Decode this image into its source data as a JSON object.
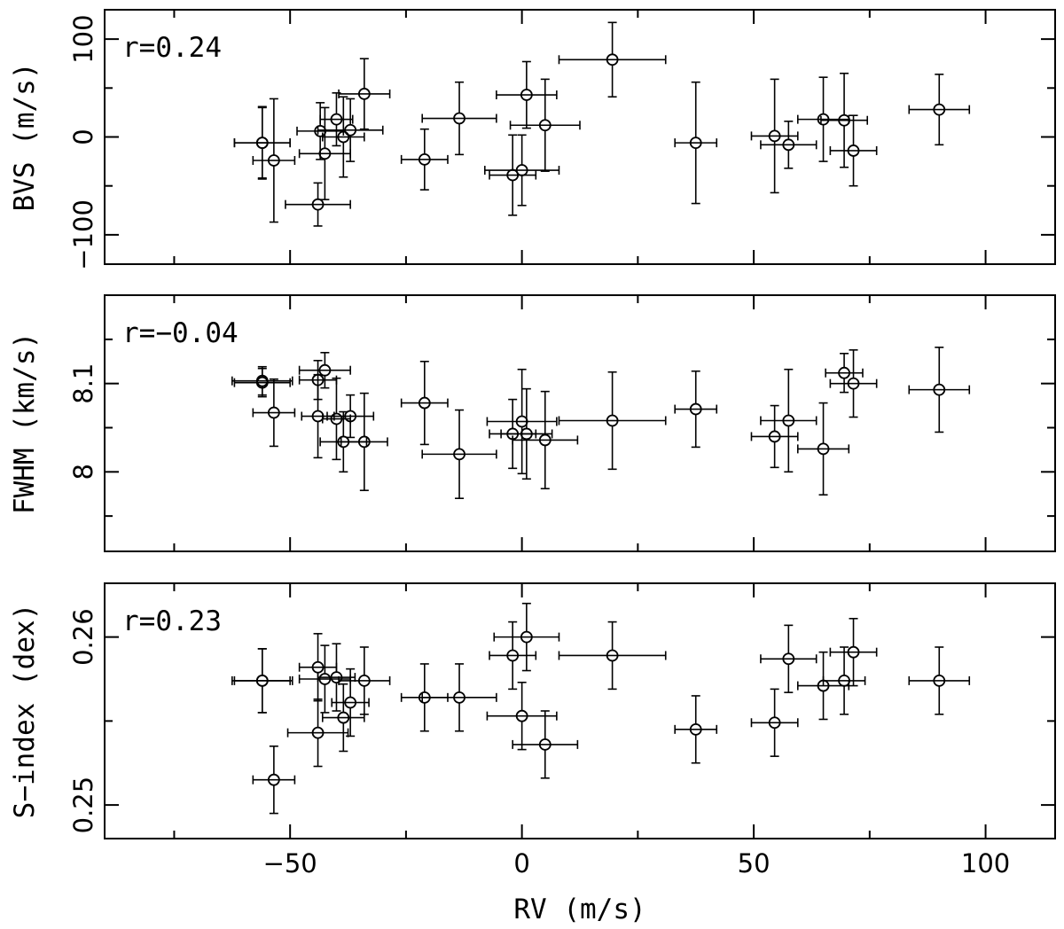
{
  "chart_data": [
    {
      "type": "scatter",
      "panel": "top",
      "annotation": "r=0.24",
      "ylabel": "BVS (m/s)",
      "xlabel": "",
      "xlim": [
        -90,
        115
      ],
      "ylim": [
        -130,
        130
      ],
      "xticks": [
        -50,
        0,
        50,
        100
      ],
      "xtick_labels": [],
      "xminor": [
        -75,
        -25,
        25,
        75
      ],
      "yticks": [
        -100,
        0,
        100
      ],
      "ytick_labels": [
        "−100",
        "0",
        "100"
      ],
      "yminor": [
        -50,
        50
      ],
      "points": [
        {
          "x": -56,
          "y": -6,
          "xerr": 6,
          "yerr": 36
        },
        {
          "x": -56,
          "y": -6,
          "xerr": 6,
          "yerr": 37
        },
        {
          "x": -53.5,
          "y": -24,
          "xerr": 4.5,
          "yerr": 63
        },
        {
          "x": -44,
          "y": -69,
          "xerr": 7,
          "yerr": 22
        },
        {
          "x": -43.5,
          "y": 6,
          "xerr": 5,
          "yerr": 29
        },
        {
          "x": -42.5,
          "y": -17,
          "xerr": 5.5,
          "yerr": 47
        },
        {
          "x": -40,
          "y": 18,
          "xerr": 3.5,
          "yerr": 27
        },
        {
          "x": -38.5,
          "y": 0,
          "xerr": 4.5,
          "yerr": 41
        },
        {
          "x": -37,
          "y": 7,
          "xerr": 7,
          "yerr": 32
        },
        {
          "x": -34,
          "y": 44,
          "xerr": 5.5,
          "yerr": 36
        },
        {
          "x": -21,
          "y": -23,
          "xerr": 5,
          "yerr": 31
        },
        {
          "x": -13.5,
          "y": 19,
          "xerr": 8,
          "yerr": 37
        },
        {
          "x": -2,
          "y": -39,
          "xerr": 5,
          "yerr": 41
        },
        {
          "x": 0,
          "y": -34,
          "xerr": 8,
          "yerr": 36
        },
        {
          "x": 1,
          "y": 43,
          "xerr": 6.5,
          "yerr": 34
        },
        {
          "x": 5,
          "y": 12,
          "xerr": 7.5,
          "yerr": 47
        },
        {
          "x": 19.5,
          "y": 79,
          "xerr": 11.5,
          "yerr": 38
        },
        {
          "x": 37.5,
          "y": -6,
          "xerr": 4.5,
          "yerr": 62
        },
        {
          "x": 54.5,
          "y": 1,
          "xerr": 5,
          "yerr": 58
        },
        {
          "x": 57.5,
          "y": -8,
          "xerr": 6,
          "yerr": 24
        },
        {
          "x": 65,
          "y": 18,
          "xerr": 5.5,
          "yerr": 43
        },
        {
          "x": 69.5,
          "y": 17,
          "xerr": 5,
          "yerr": 48
        },
        {
          "x": 71.5,
          "y": -14,
          "xerr": 5,
          "yerr": 36
        },
        {
          "x": 90,
          "y": 28,
          "xerr": 6.5,
          "yerr": 36
        }
      ]
    },
    {
      "type": "scatter",
      "panel": "middle",
      "annotation": "r=−0.04",
      "ylabel": "FWHM (km/s)",
      "xlabel": "",
      "xlim": [
        -90,
        115
      ],
      "ylim": [
        7.91,
        8.2
      ],
      "xticks": [
        -50,
        0,
        50,
        100
      ],
      "xtick_labels": [],
      "xminor": [
        -75,
        -25,
        25,
        75
      ],
      "yticks": [
        8,
        8.1
      ],
      "ytick_labels": [
        "8",
        "8.1"
      ],
      "yminor": [
        7.95,
        8.05,
        8.15
      ],
      "points": [
        {
          "x": -56,
          "y": 8.101,
          "xerr": 6,
          "yerr": 0.016
        },
        {
          "x": -56,
          "y": 8.103,
          "xerr": 6.5,
          "yerr": 0.016
        },
        {
          "x": -53.5,
          "y": 8.067,
          "xerr": 4.5,
          "yerr": 0.038
        },
        {
          "x": -44,
          "y": 8.104,
          "xerr": 4,
          "yerr": 0.022
        },
        {
          "x": -44,
          "y": 8.063,
          "xerr": 3.5,
          "yerr": 0.047
        },
        {
          "x": -42.5,
          "y": 8.115,
          "xerr": 5.5,
          "yerr": 0.02
        },
        {
          "x": -40,
          "y": 8.06,
          "xerr": 3,
          "yerr": 0.046
        },
        {
          "x": -38.5,
          "y": 8.034,
          "xerr": 5,
          "yerr": 0.034
        },
        {
          "x": -37,
          "y": 8.063,
          "xerr": 5,
          "yerr": 0.024
        },
        {
          "x": -34,
          "y": 8.034,
          "xerr": 5,
          "yerr": 0.055
        },
        {
          "x": -21,
          "y": 8.078,
          "xerr": 5,
          "yerr": 0.047
        },
        {
          "x": -13.5,
          "y": 8.02,
          "xerr": 8,
          "yerr": 0.05
        },
        {
          "x": -2,
          "y": 8.043,
          "xerr": 5,
          "yerr": 0.039
        },
        {
          "x": 0,
          "y": 8.057,
          "xerr": 7.5,
          "yerr": 0.059
        },
        {
          "x": 1,
          "y": 8.043,
          "xerr": 5.5,
          "yerr": 0.051
        },
        {
          "x": 5,
          "y": 8.036,
          "xerr": 7,
          "yerr": 0.055
        },
        {
          "x": 19.5,
          "y": 8.058,
          "xerr": 11.5,
          "yerr": 0.055
        },
        {
          "x": 37.5,
          "y": 8.071,
          "xerr": 4.5,
          "yerr": 0.043
        },
        {
          "x": 54.5,
          "y": 8.04,
          "xerr": 5,
          "yerr": 0.035
        },
        {
          "x": 57.5,
          "y": 8.058,
          "xerr": 6,
          "yerr": 0.058
        },
        {
          "x": 65,
          "y": 8.026,
          "xerr": 5.5,
          "yerr": 0.052
        },
        {
          "x": 69.5,
          "y": 8.112,
          "xerr": 4,
          "yerr": 0.022
        },
        {
          "x": 71.5,
          "y": 8.1,
          "xerr": 5,
          "yerr": 0.038
        },
        {
          "x": 90,
          "y": 8.093,
          "xerr": 6.5,
          "yerr": 0.048
        }
      ]
    },
    {
      "type": "scatter",
      "panel": "bottom",
      "annotation": "r=0.23",
      "ylabel": "S−index (dex)",
      "xlabel": "RV (m/s)",
      "xlim": [
        -90,
        115
      ],
      "ylim": [
        0.248,
        0.2632
      ],
      "xticks": [
        -50,
        0,
        50,
        100
      ],
      "xtick_labels": [
        "−50",
        "0",
        "50",
        "100"
      ],
      "xminor": [
        -75,
        -25,
        25,
        75
      ],
      "yticks": [
        0.25,
        0.26
      ],
      "ytick_labels": [
        "0.25",
        "0.26"
      ],
      "yminor": [
        0.255
      ],
      "points": [
        {
          "x": -56,
          "y": 0.2574,
          "xerr": 6,
          "yerr": 0.0019
        },
        {
          "x": -56,
          "y": 0.2574,
          "xerr": 6.5,
          "yerr": 0.0019
        },
        {
          "x": -53.5,
          "y": 0.2515,
          "xerr": 4.5,
          "yerr": 0.002
        },
        {
          "x": -44,
          "y": 0.2582,
          "xerr": 4,
          "yerr": 0.002
        },
        {
          "x": -44,
          "y": 0.2543,
          "xerr": 6.5,
          "yerr": 0.002
        },
        {
          "x": -42.5,
          "y": 0.2575,
          "xerr": 5.5,
          "yerr": 0.002
        },
        {
          "x": -40,
          "y": 0.2576,
          "xerr": 4,
          "yerr": 0.002
        },
        {
          "x": -38.5,
          "y": 0.2552,
          "xerr": 4.5,
          "yerr": 0.002
        },
        {
          "x": -37,
          "y": 0.2561,
          "xerr": 4,
          "yerr": 0.002
        },
        {
          "x": -34,
          "y": 0.2574,
          "xerr": 5.5,
          "yerr": 0.002
        },
        {
          "x": -21,
          "y": 0.2564,
          "xerr": 5,
          "yerr": 0.002
        },
        {
          "x": -13.5,
          "y": 0.2564,
          "xerr": 8,
          "yerr": 0.002
        },
        {
          "x": -2,
          "y": 0.2589,
          "xerr": 5,
          "yerr": 0.002
        },
        {
          "x": 0,
          "y": 0.2553,
          "xerr": 7.5,
          "yerr": 0.002
        },
        {
          "x": 1,
          "y": 0.26,
          "xerr": 7,
          "yerr": 0.002
        },
        {
          "x": 5,
          "y": 0.2536,
          "xerr": 7,
          "yerr": 0.002
        },
        {
          "x": 19.5,
          "y": 0.2589,
          "xerr": 11.5,
          "yerr": 0.002
        },
        {
          "x": 37.5,
          "y": 0.2545,
          "xerr": 4.5,
          "yerr": 0.002
        },
        {
          "x": 54.5,
          "y": 0.2549,
          "xerr": 5,
          "yerr": 0.002
        },
        {
          "x": 57.5,
          "y": 0.2587,
          "xerr": 6,
          "yerr": 0.002
        },
        {
          "x": 65,
          "y": 0.2571,
          "xerr": 5.5,
          "yerr": 0.002
        },
        {
          "x": 69.5,
          "y": 0.2574,
          "xerr": 4.5,
          "yerr": 0.002
        },
        {
          "x": 71.5,
          "y": 0.2591,
          "xerr": 5,
          "yerr": 0.002
        },
        {
          "x": 90,
          "y": 0.2574,
          "xerr": 6.5,
          "yerr": 0.002
        }
      ]
    }
  ]
}
